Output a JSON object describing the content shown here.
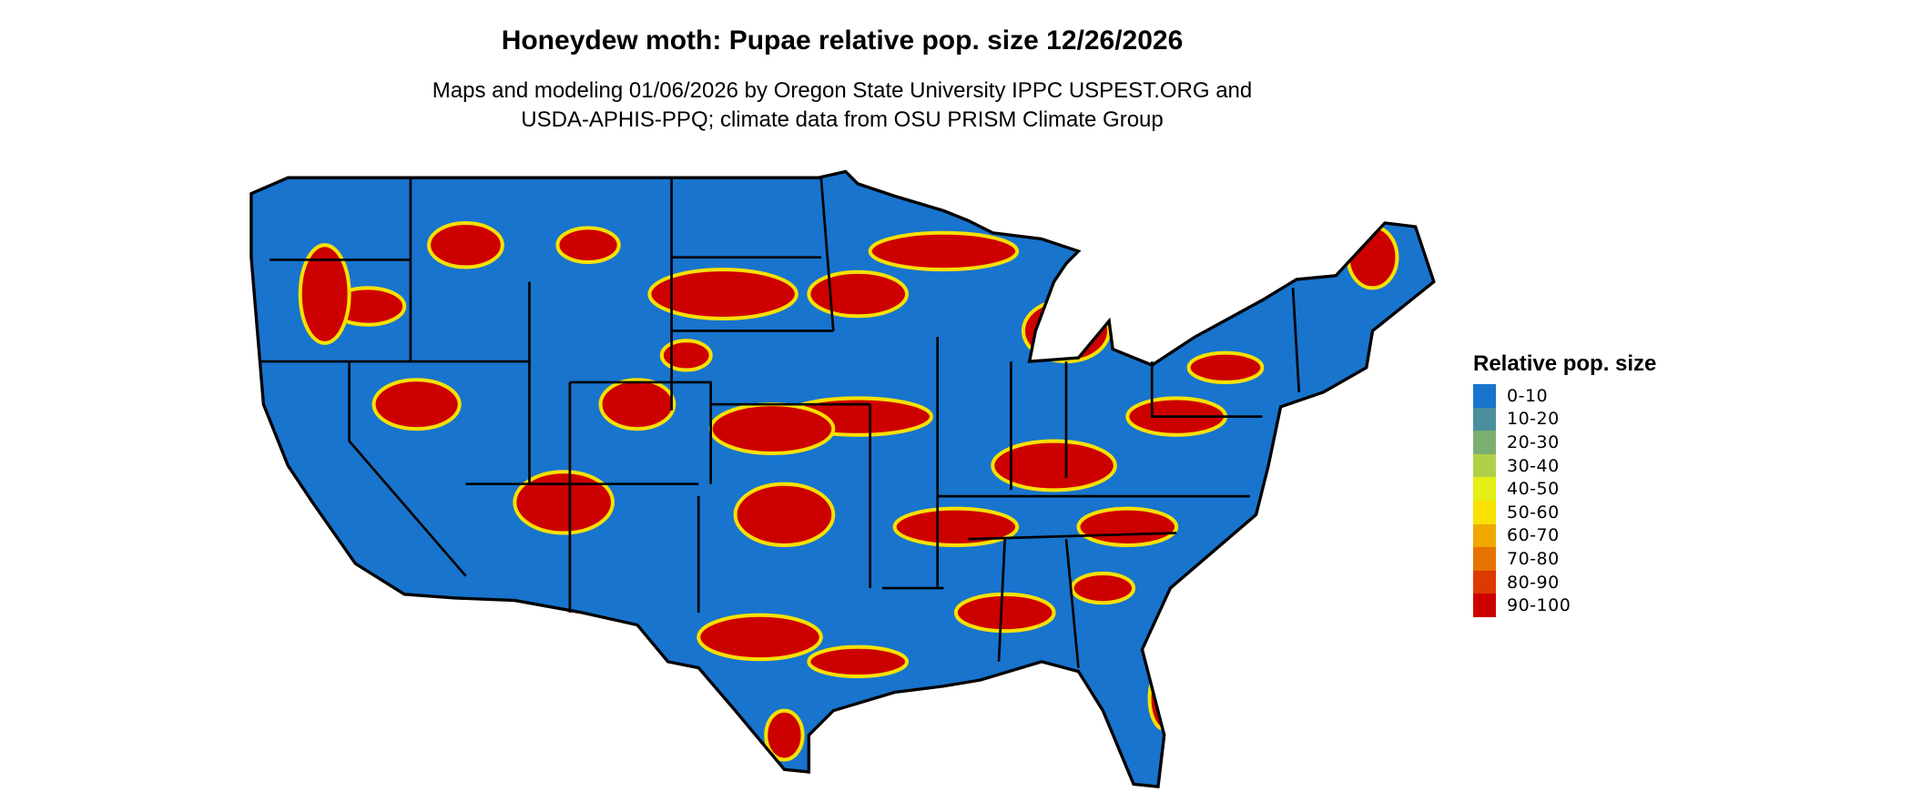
{
  "title": "Honeydew moth: Pupae relative pop. size 12/26/2026",
  "subtitle_lines": [
    "Maps and modeling 01/06/2026 by Oregon State University IPPC USPEST.ORG and",
    "USDA-APHIS-PPQ; climate data from OSU PRISM Climate Group"
  ],
  "map": {
    "region": "contiguous United States",
    "dominant_class": "0-10",
    "hotspot_class": "90-100"
  },
  "legend": {
    "title": "Relative pop. size",
    "placement": "right",
    "items": [
      {
        "label": "0-10",
        "color": "#1874CD"
      },
      {
        "label": "10-20",
        "color": "#4A8F9E"
      },
      {
        "label": "20-30",
        "color": "#7BAE70"
      },
      {
        "label": "30-40",
        "color": "#B2D047"
      },
      {
        "label": "40-50",
        "color": "#E4EF16"
      },
      {
        "label": "50-60",
        "color": "#F8E100"
      },
      {
        "label": "60-70",
        "color": "#F0A800"
      },
      {
        "label": "70-80",
        "color": "#E67200"
      },
      {
        "label": "80-90",
        "color": "#DC3A00"
      },
      {
        "label": "90-100",
        "color": "#CD0000"
      }
    ]
  }
}
